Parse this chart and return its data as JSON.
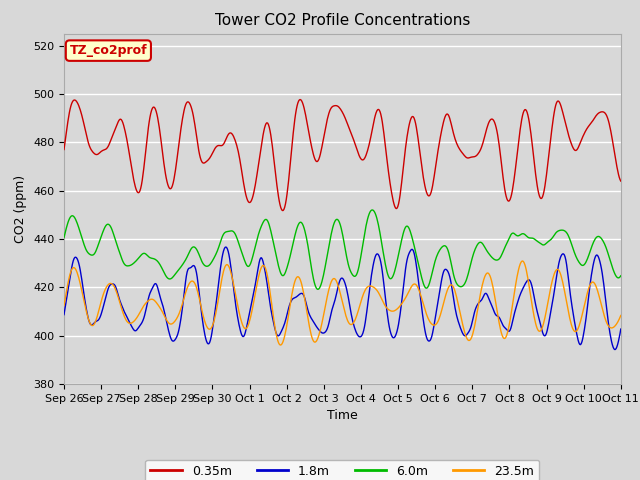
{
  "title": "Tower CO2 Profile Concentrations",
  "xlabel": "Time",
  "ylabel": "CO2 (ppm)",
  "ylim": [
    380,
    525
  ],
  "yticks": [
    380,
    400,
    420,
    440,
    460,
    480,
    500,
    520
  ],
  "xtick_labels": [
    "Sep 26",
    "Sep 27",
    "Sep 28",
    "Sep 29",
    "Sep 30",
    "Oct 1",
    "Oct 2",
    "Oct 3",
    "Oct 4",
    "Oct 5",
    "Oct 6",
    "Oct 7",
    "Oct 8",
    "Oct 9",
    "Oct 10",
    "Oct 11"
  ],
  "n_days": 15,
  "points_per_day": 48,
  "legend_labels": [
    "0.35m",
    "1.8m",
    "6.0m",
    "23.5m"
  ],
  "line_colors": [
    "#cc0000",
    "#0000cc",
    "#00bb00",
    "#ff9900"
  ],
  "annotation_text": "TZ_co2prof",
  "annotation_bg": "#ffffcc",
  "annotation_border": "#cc0000",
  "fig_facecolor": "#d8d8d8",
  "plot_facecolor": "#d8d8d8",
  "grid_color": "#ffffff",
  "title_fontsize": 11,
  "axis_fontsize": 9,
  "tick_fontsize": 8,
  "legend_fontsize": 9,
  "red_base": 478,
  "red_amp": 13,
  "green_base": 435,
  "green_amp": 8,
  "blue_base": 413,
  "blue_amp": 13,
  "orange_base": 413,
  "orange_amp": 10
}
